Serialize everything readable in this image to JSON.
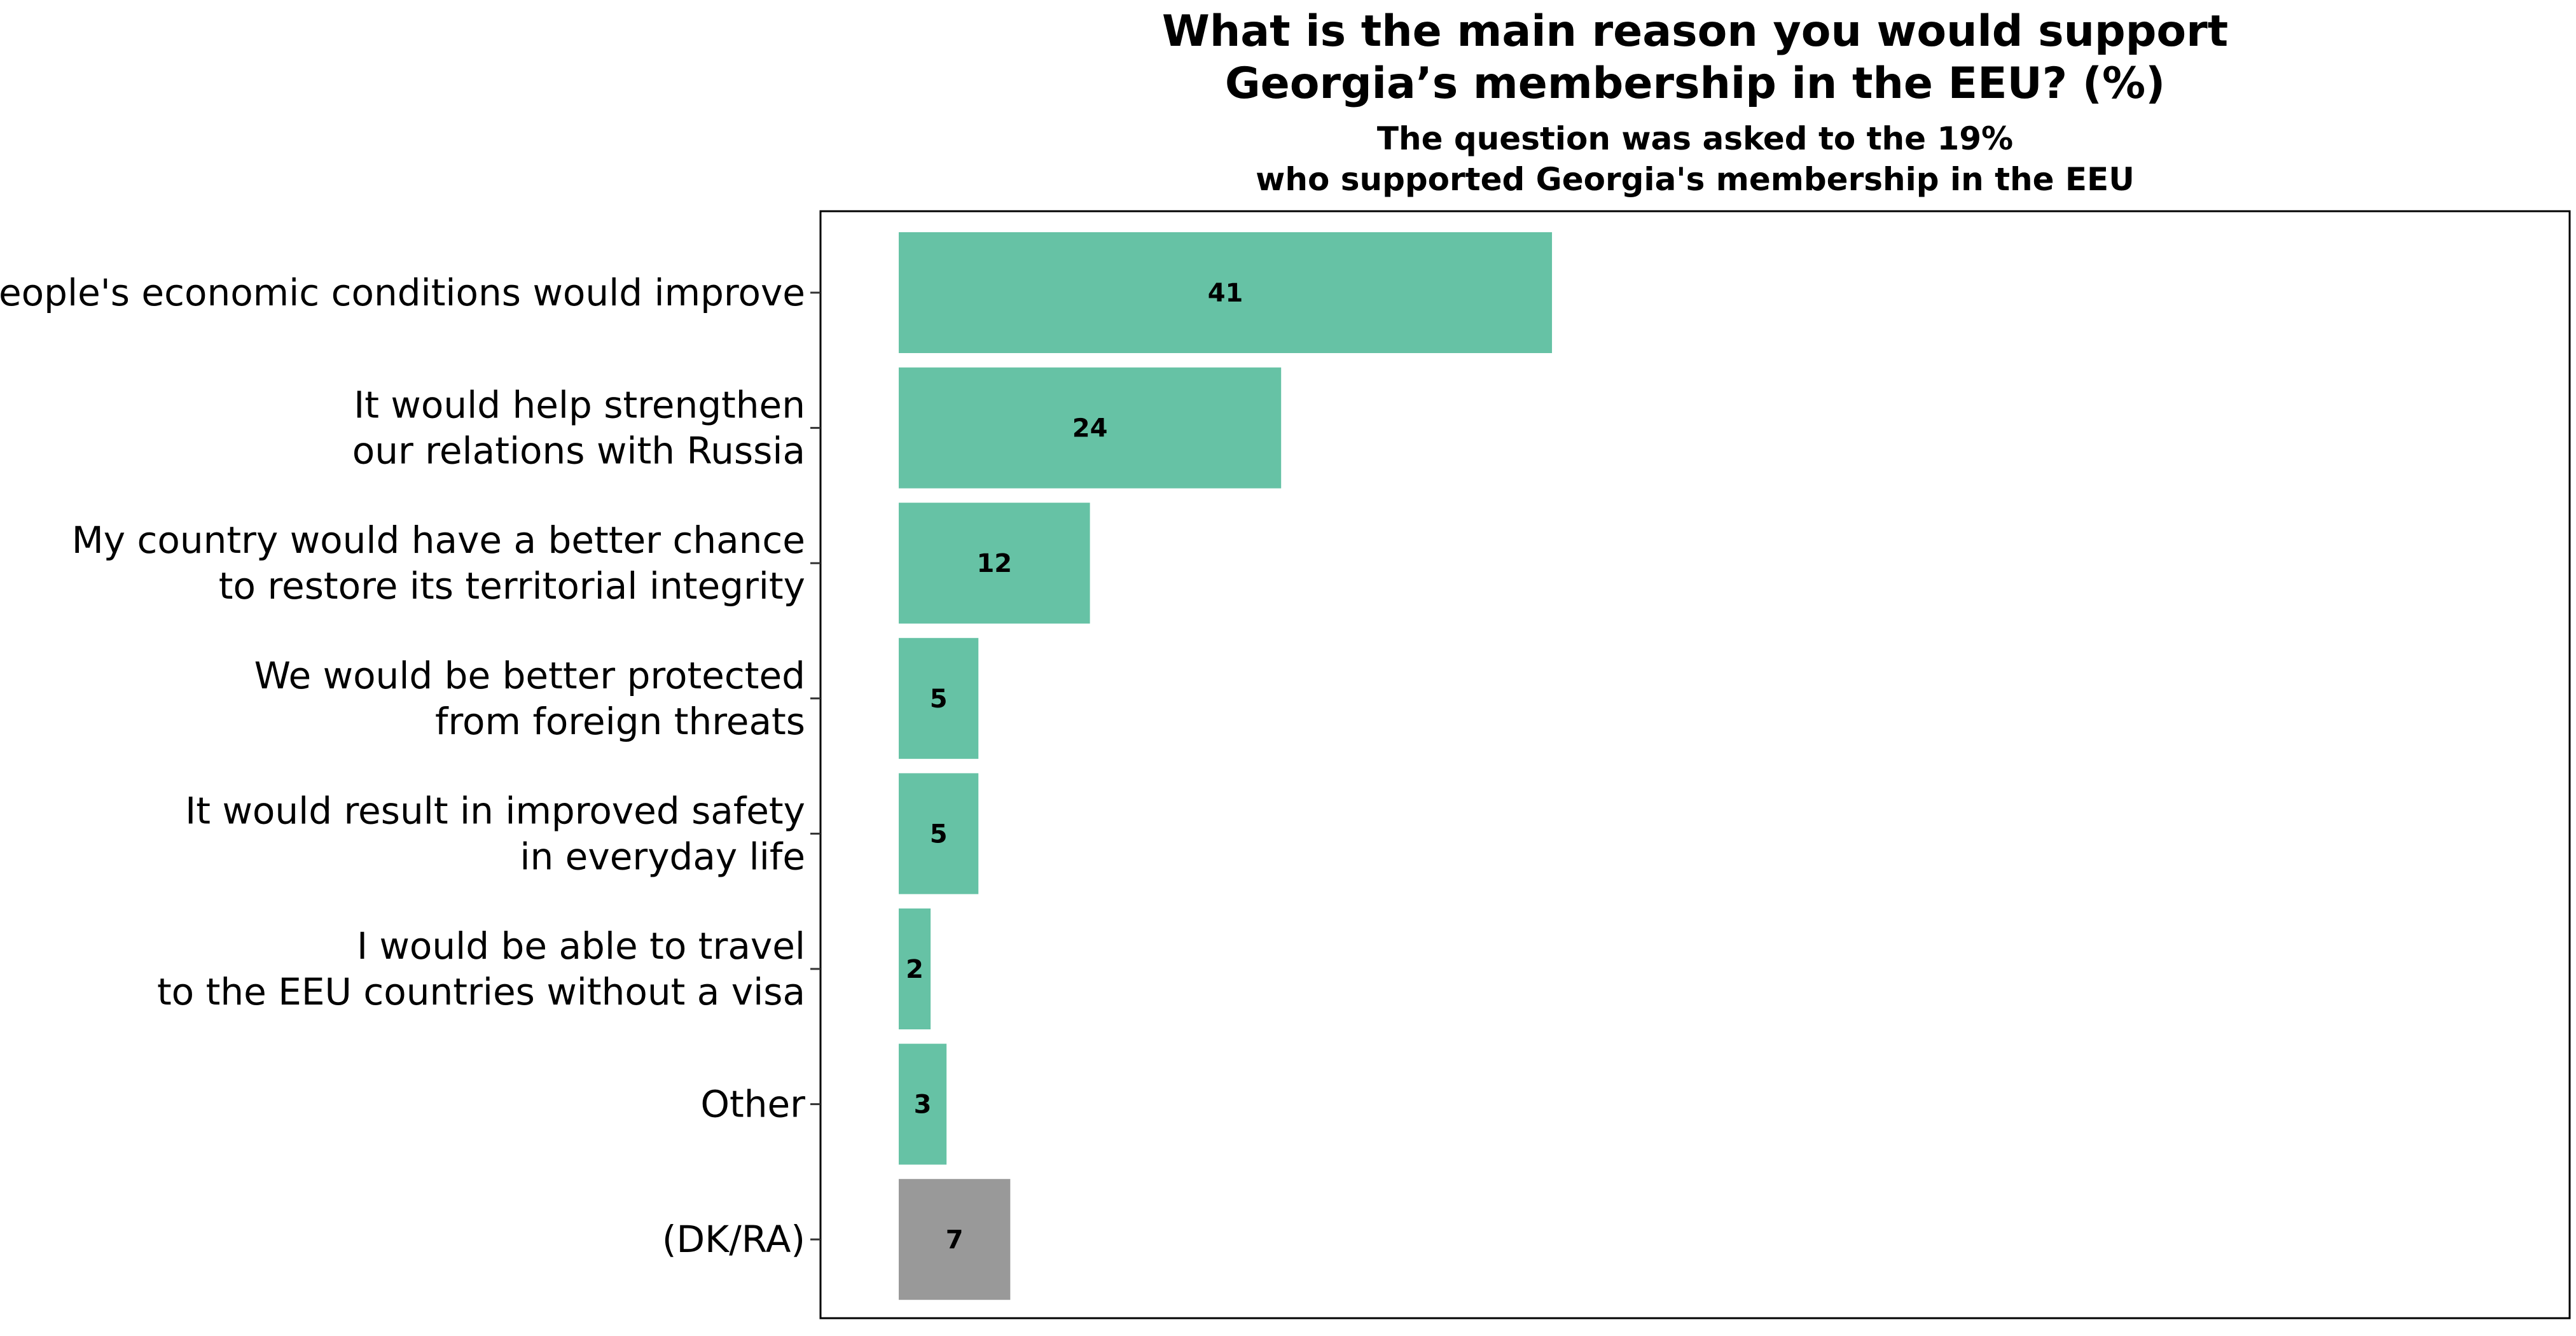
{
  "chart_data": {
    "type": "bar",
    "orientation": "horizontal",
    "title": [
      "What is the main reason you would support",
      "Georgia’s membership in the EEU? (%)"
    ],
    "subtitle": [
      "The question was asked to the 19%",
      "who supported Georgia's membership in the EEU"
    ],
    "categories": [
      [
        "People's economic conditions would improve"
      ],
      [
        "It would help strengthen",
        "our relations with Russia"
      ],
      [
        "My country would have a better chance",
        "to restore its territorial integrity"
      ],
      [
        "We would be better protected",
        "from foreign threats"
      ],
      [
        "It would result in improved safety",
        "in everyday life"
      ],
      [
        "I would be able to travel",
        "to the EEU countries without a visa"
      ],
      [
        "Other"
      ],
      [
        "(DK/RA)"
      ]
    ],
    "values": [
      41,
      24,
      12,
      5,
      5,
      2,
      3,
      7
    ],
    "bar_colors": [
      "#66c2a5",
      "#66c2a5",
      "#66c2a5",
      "#66c2a5",
      "#66c2a5",
      "#66c2a5",
      "#66c2a5",
      "#999999"
    ],
    "xlim": [
      0,
      105
    ],
    "grid": false,
    "legend": "none"
  }
}
